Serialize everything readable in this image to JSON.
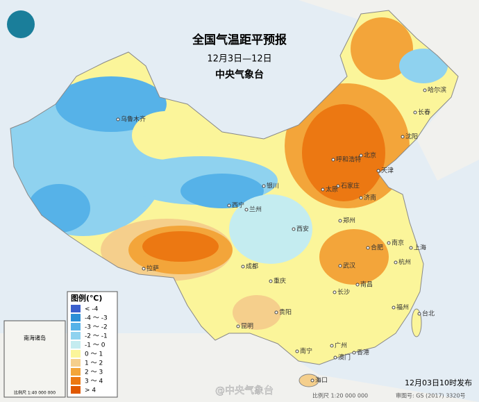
{
  "header": {
    "title": "全国气温距平预报",
    "date": "12月3日—12日",
    "org": "中央气象台"
  },
  "legend": {
    "title": "图例(℃)",
    "items": [
      {
        "label": "< -4",
        "color": "#3a5fcd"
      },
      {
        "label": "-4 ～ -3",
        "color": "#2b8fd6"
      },
      {
        "label": "-3 ～ -2",
        "color": "#56b2e8"
      },
      {
        "label": "-2 ～ -1",
        "color": "#8fd2ef"
      },
      {
        "label": "-1 ～ 0",
        "color": "#c4ecf0"
      },
      {
        "label": "0 ～ 1",
        "color": "#fbf59a"
      },
      {
        "label": "1 ～ 2",
        "color": "#f5cf8c"
      },
      {
        "label": "2 ～ 3",
        "color": "#f3a53a"
      },
      {
        "label": "3 ～ 4",
        "color": "#ec7812"
      },
      {
        "label": "> 4",
        "color": "#e05800"
      }
    ]
  },
  "cities": [
    "乌鲁木齐",
    "哈尔滨",
    "长春",
    "沈阳",
    "北京",
    "天津",
    "呼和浩特",
    "石家庄",
    "太原",
    "济南",
    "银川",
    "西宁",
    "兰州",
    "郑州",
    "西安",
    "合肥",
    "南京",
    "上海",
    "武汉",
    "杭州",
    "成都",
    "重庆",
    "长沙",
    "南昌",
    "拉萨",
    "贵阳",
    "昆明",
    "福州",
    "台北",
    "南宁",
    "广州",
    "香港",
    "澳门",
    "海口"
  ],
  "inset": {
    "title": "南海诸岛",
    "scale": "比例尺 1:40 000 000"
  },
  "footer": {
    "issued": "12月03日10时发布",
    "scale": "比例尺 1:20 000 000",
    "approval": "审图号: GS (2017) 3320号",
    "watermark": "@中央气象台"
  }
}
